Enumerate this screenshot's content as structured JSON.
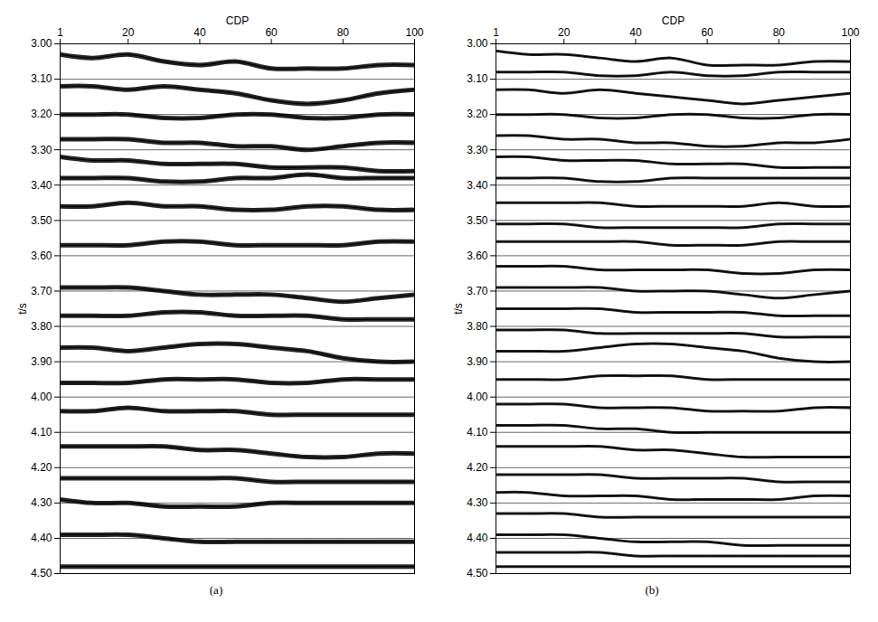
{
  "chart_data": [
    {
      "type": "line",
      "title": "(a)",
      "x_label": "CDP",
      "y_label": "t/s",
      "color": "#000000",
      "grid": true,
      "xlim": [
        1,
        100
      ],
      "xticks": [
        1,
        20,
        40,
        60,
        80,
        100
      ],
      "ylim": [
        3.0,
        4.5
      ],
      "yticks": [
        {
          "value": 3.0,
          "label": "3.00"
        },
        {
          "value": 3.1,
          "label": "3.10"
        },
        {
          "value": 3.2,
          "label": "3.20"
        },
        {
          "value": 3.3,
          "label": "3.30"
        },
        {
          "value": 3.4,
          "label": "3.40"
        },
        {
          "value": 3.5,
          "label": "3.50"
        },
        {
          "value": 3.6,
          "label": "3.60"
        },
        {
          "value": 3.7,
          "label": "3.70"
        },
        {
          "value": 3.8,
          "label": "3.80"
        },
        {
          "value": 3.9,
          "label": "3.90"
        },
        {
          "value": 4.0,
          "label": "4.00"
        },
        {
          "value": 4.1,
          "label": "4.10"
        },
        {
          "value": 4.2,
          "label": "4.20"
        },
        {
          "value": 4.3,
          "label": "4.30"
        },
        {
          "value": 4.4,
          "label": "4.40"
        },
        {
          "value": 4.5,
          "label": "4.50"
        }
      ],
      "x": [
        1,
        10,
        20,
        30,
        40,
        50,
        60,
        70,
        80,
        90,
        100
      ],
      "series": [
        {
          "values": [
            3.03,
            3.04,
            3.03,
            3.05,
            3.06,
            3.05,
            3.07,
            3.07,
            3.07,
            3.06,
            3.06
          ]
        },
        {
          "values": [
            3.12,
            3.12,
            3.13,
            3.12,
            3.13,
            3.14,
            3.16,
            3.17,
            3.16,
            3.14,
            3.13
          ]
        },
        {
          "values": [
            3.2,
            3.2,
            3.2,
            3.21,
            3.21,
            3.2,
            3.2,
            3.21,
            3.21,
            3.2,
            3.2
          ]
        },
        {
          "values": [
            3.27,
            3.27,
            3.27,
            3.28,
            3.28,
            3.29,
            3.29,
            3.3,
            3.29,
            3.28,
            3.28
          ]
        },
        {
          "values": [
            3.32,
            3.33,
            3.33,
            3.34,
            3.34,
            3.34,
            3.35,
            3.35,
            3.35,
            3.36,
            3.36
          ]
        },
        {
          "values": [
            3.38,
            3.38,
            3.38,
            3.39,
            3.39,
            3.38,
            3.38,
            3.37,
            3.38,
            3.38,
            3.38
          ]
        },
        {
          "values": [
            3.46,
            3.46,
            3.45,
            3.46,
            3.46,
            3.47,
            3.47,
            3.46,
            3.46,
            3.47,
            3.47
          ]
        },
        {
          "values": [
            3.57,
            3.57,
            3.57,
            3.56,
            3.56,
            3.57,
            3.57,
            3.57,
            3.57,
            3.56,
            3.56
          ]
        },
        {
          "values": [
            3.69,
            3.69,
            3.69,
            3.7,
            3.71,
            3.71,
            3.71,
            3.72,
            3.73,
            3.72,
            3.71
          ]
        },
        {
          "values": [
            3.77,
            3.77,
            3.77,
            3.76,
            3.76,
            3.77,
            3.77,
            3.77,
            3.78,
            3.78,
            3.78
          ]
        },
        {
          "values": [
            3.86,
            3.86,
            3.87,
            3.86,
            3.85,
            3.85,
            3.86,
            3.87,
            3.89,
            3.9,
            3.9
          ]
        },
        {
          "values": [
            3.96,
            3.96,
            3.96,
            3.95,
            3.95,
            3.95,
            3.96,
            3.96,
            3.95,
            3.95,
            3.95
          ]
        },
        {
          "values": [
            4.04,
            4.04,
            4.03,
            4.04,
            4.04,
            4.04,
            4.05,
            4.05,
            4.05,
            4.05,
            4.05
          ]
        },
        {
          "values": [
            4.14,
            4.14,
            4.14,
            4.14,
            4.15,
            4.15,
            4.16,
            4.17,
            4.17,
            4.16,
            4.16
          ]
        },
        {
          "values": [
            4.23,
            4.23,
            4.23,
            4.23,
            4.23,
            4.23,
            4.24,
            4.24,
            4.24,
            4.24,
            4.24
          ]
        },
        {
          "values": [
            4.29,
            4.3,
            4.3,
            4.31,
            4.31,
            4.31,
            4.3,
            4.3,
            4.3,
            4.3,
            4.3
          ]
        },
        {
          "values": [
            4.39,
            4.39,
            4.39,
            4.4,
            4.41,
            4.41,
            4.41,
            4.41,
            4.41,
            4.41,
            4.41
          ]
        },
        {
          "values": [
            4.48,
            4.48,
            4.48,
            4.48,
            4.48,
            4.48,
            4.48,
            4.48,
            4.48,
            4.48,
            4.48
          ]
        }
      ]
    },
    {
      "type": "line",
      "title": "(b)",
      "x_label": "CDP",
      "y_label": "t/s",
      "color": "#000000",
      "grid": true,
      "xlim": [
        1,
        100
      ],
      "xticks": [
        1,
        20,
        40,
        60,
        80,
        100
      ],
      "ylim": [
        3.0,
        4.5
      ],
      "yticks": [
        {
          "value": 3.0,
          "label": "3.00"
        },
        {
          "value": 3.1,
          "label": "3.10"
        },
        {
          "value": 3.2,
          "label": "3.20"
        },
        {
          "value": 3.3,
          "label": "3.30"
        },
        {
          "value": 3.4,
          "label": "3.40"
        },
        {
          "value": 3.5,
          "label": "3.50"
        },
        {
          "value": 3.6,
          "label": "3.60"
        },
        {
          "value": 3.7,
          "label": "3.70"
        },
        {
          "value": 3.8,
          "label": "3.80"
        },
        {
          "value": 3.9,
          "label": "3.90"
        },
        {
          "value": 4.0,
          "label": "4.00"
        },
        {
          "value": 4.1,
          "label": "4.10"
        },
        {
          "value": 4.2,
          "label": "4.20"
        },
        {
          "value": 4.3,
          "label": "4.30"
        },
        {
          "value": 4.4,
          "label": "4.40"
        },
        {
          "value": 4.5,
          "label": "4.50"
        }
      ],
      "x": [
        1,
        10,
        20,
        30,
        40,
        50,
        60,
        70,
        80,
        90,
        100
      ],
      "series": [
        {
          "values": [
            3.02,
            3.03,
            3.03,
            3.04,
            3.05,
            3.04,
            3.06,
            3.06,
            3.06,
            3.05,
            3.05
          ]
        },
        {
          "values": [
            3.08,
            3.08,
            3.08,
            3.09,
            3.09,
            3.08,
            3.09,
            3.09,
            3.08,
            3.08,
            3.08
          ]
        },
        {
          "values": [
            3.13,
            3.13,
            3.14,
            3.13,
            3.14,
            3.15,
            3.16,
            3.17,
            3.16,
            3.15,
            3.14
          ]
        },
        {
          "values": [
            3.2,
            3.2,
            3.2,
            3.21,
            3.21,
            3.2,
            3.2,
            3.21,
            3.21,
            3.2,
            3.2
          ]
        },
        {
          "values": [
            3.26,
            3.26,
            3.27,
            3.27,
            3.28,
            3.28,
            3.29,
            3.29,
            3.28,
            3.28,
            3.27
          ]
        },
        {
          "values": [
            3.32,
            3.32,
            3.33,
            3.33,
            3.33,
            3.34,
            3.34,
            3.34,
            3.35,
            3.35,
            3.35
          ]
        },
        {
          "values": [
            3.38,
            3.38,
            3.38,
            3.39,
            3.39,
            3.38,
            3.38,
            3.38,
            3.38,
            3.38,
            3.38
          ]
        },
        {
          "values": [
            3.45,
            3.45,
            3.45,
            3.45,
            3.46,
            3.46,
            3.46,
            3.46,
            3.45,
            3.46,
            3.46
          ]
        },
        {
          "values": [
            3.51,
            3.51,
            3.51,
            3.52,
            3.52,
            3.52,
            3.52,
            3.52,
            3.51,
            3.51,
            3.51
          ]
        },
        {
          "values": [
            3.56,
            3.56,
            3.56,
            3.56,
            3.56,
            3.57,
            3.57,
            3.57,
            3.56,
            3.56,
            3.56
          ]
        },
        {
          "values": [
            3.63,
            3.63,
            3.63,
            3.64,
            3.64,
            3.64,
            3.64,
            3.65,
            3.65,
            3.64,
            3.64
          ]
        },
        {
          "values": [
            3.69,
            3.69,
            3.69,
            3.69,
            3.7,
            3.7,
            3.7,
            3.71,
            3.72,
            3.71,
            3.7
          ]
        },
        {
          "values": [
            3.75,
            3.75,
            3.75,
            3.75,
            3.76,
            3.76,
            3.76,
            3.76,
            3.77,
            3.77,
            3.77
          ]
        },
        {
          "values": [
            3.81,
            3.81,
            3.81,
            3.82,
            3.82,
            3.82,
            3.82,
            3.82,
            3.83,
            3.83,
            3.83
          ]
        },
        {
          "values": [
            3.87,
            3.87,
            3.87,
            3.86,
            3.85,
            3.85,
            3.86,
            3.87,
            3.89,
            3.9,
            3.9
          ]
        },
        {
          "values": [
            3.95,
            3.95,
            3.95,
            3.94,
            3.94,
            3.94,
            3.95,
            3.95,
            3.95,
            3.95,
            3.95
          ]
        },
        {
          "values": [
            4.02,
            4.02,
            4.02,
            4.03,
            4.03,
            4.03,
            4.04,
            4.04,
            4.04,
            4.03,
            4.03
          ]
        },
        {
          "values": [
            4.08,
            4.08,
            4.08,
            4.09,
            4.09,
            4.1,
            4.1,
            4.1,
            4.1,
            4.1,
            4.1
          ]
        },
        {
          "values": [
            4.14,
            4.14,
            4.14,
            4.14,
            4.15,
            4.15,
            4.16,
            4.17,
            4.17,
            4.17,
            4.17
          ]
        },
        {
          "values": [
            4.22,
            4.22,
            4.22,
            4.22,
            4.23,
            4.23,
            4.23,
            4.23,
            4.24,
            4.24,
            4.24
          ]
        },
        {
          "values": [
            4.27,
            4.27,
            4.28,
            4.28,
            4.28,
            4.29,
            4.29,
            4.29,
            4.29,
            4.28,
            4.28
          ]
        },
        {
          "values": [
            4.33,
            4.33,
            4.33,
            4.34,
            4.34,
            4.34,
            4.34,
            4.34,
            4.34,
            4.34,
            4.34
          ]
        },
        {
          "values": [
            4.39,
            4.39,
            4.39,
            4.4,
            4.41,
            4.41,
            4.41,
            4.42,
            4.42,
            4.42,
            4.42
          ]
        },
        {
          "values": [
            4.44,
            4.44,
            4.44,
            4.44,
            4.45,
            4.45,
            4.45,
            4.45,
            4.45,
            4.45,
            4.45
          ]
        },
        {
          "values": [
            4.48,
            4.48,
            4.48,
            4.48,
            4.48,
            4.48,
            4.48,
            4.48,
            4.48,
            4.48,
            4.48
          ]
        }
      ]
    }
  ]
}
